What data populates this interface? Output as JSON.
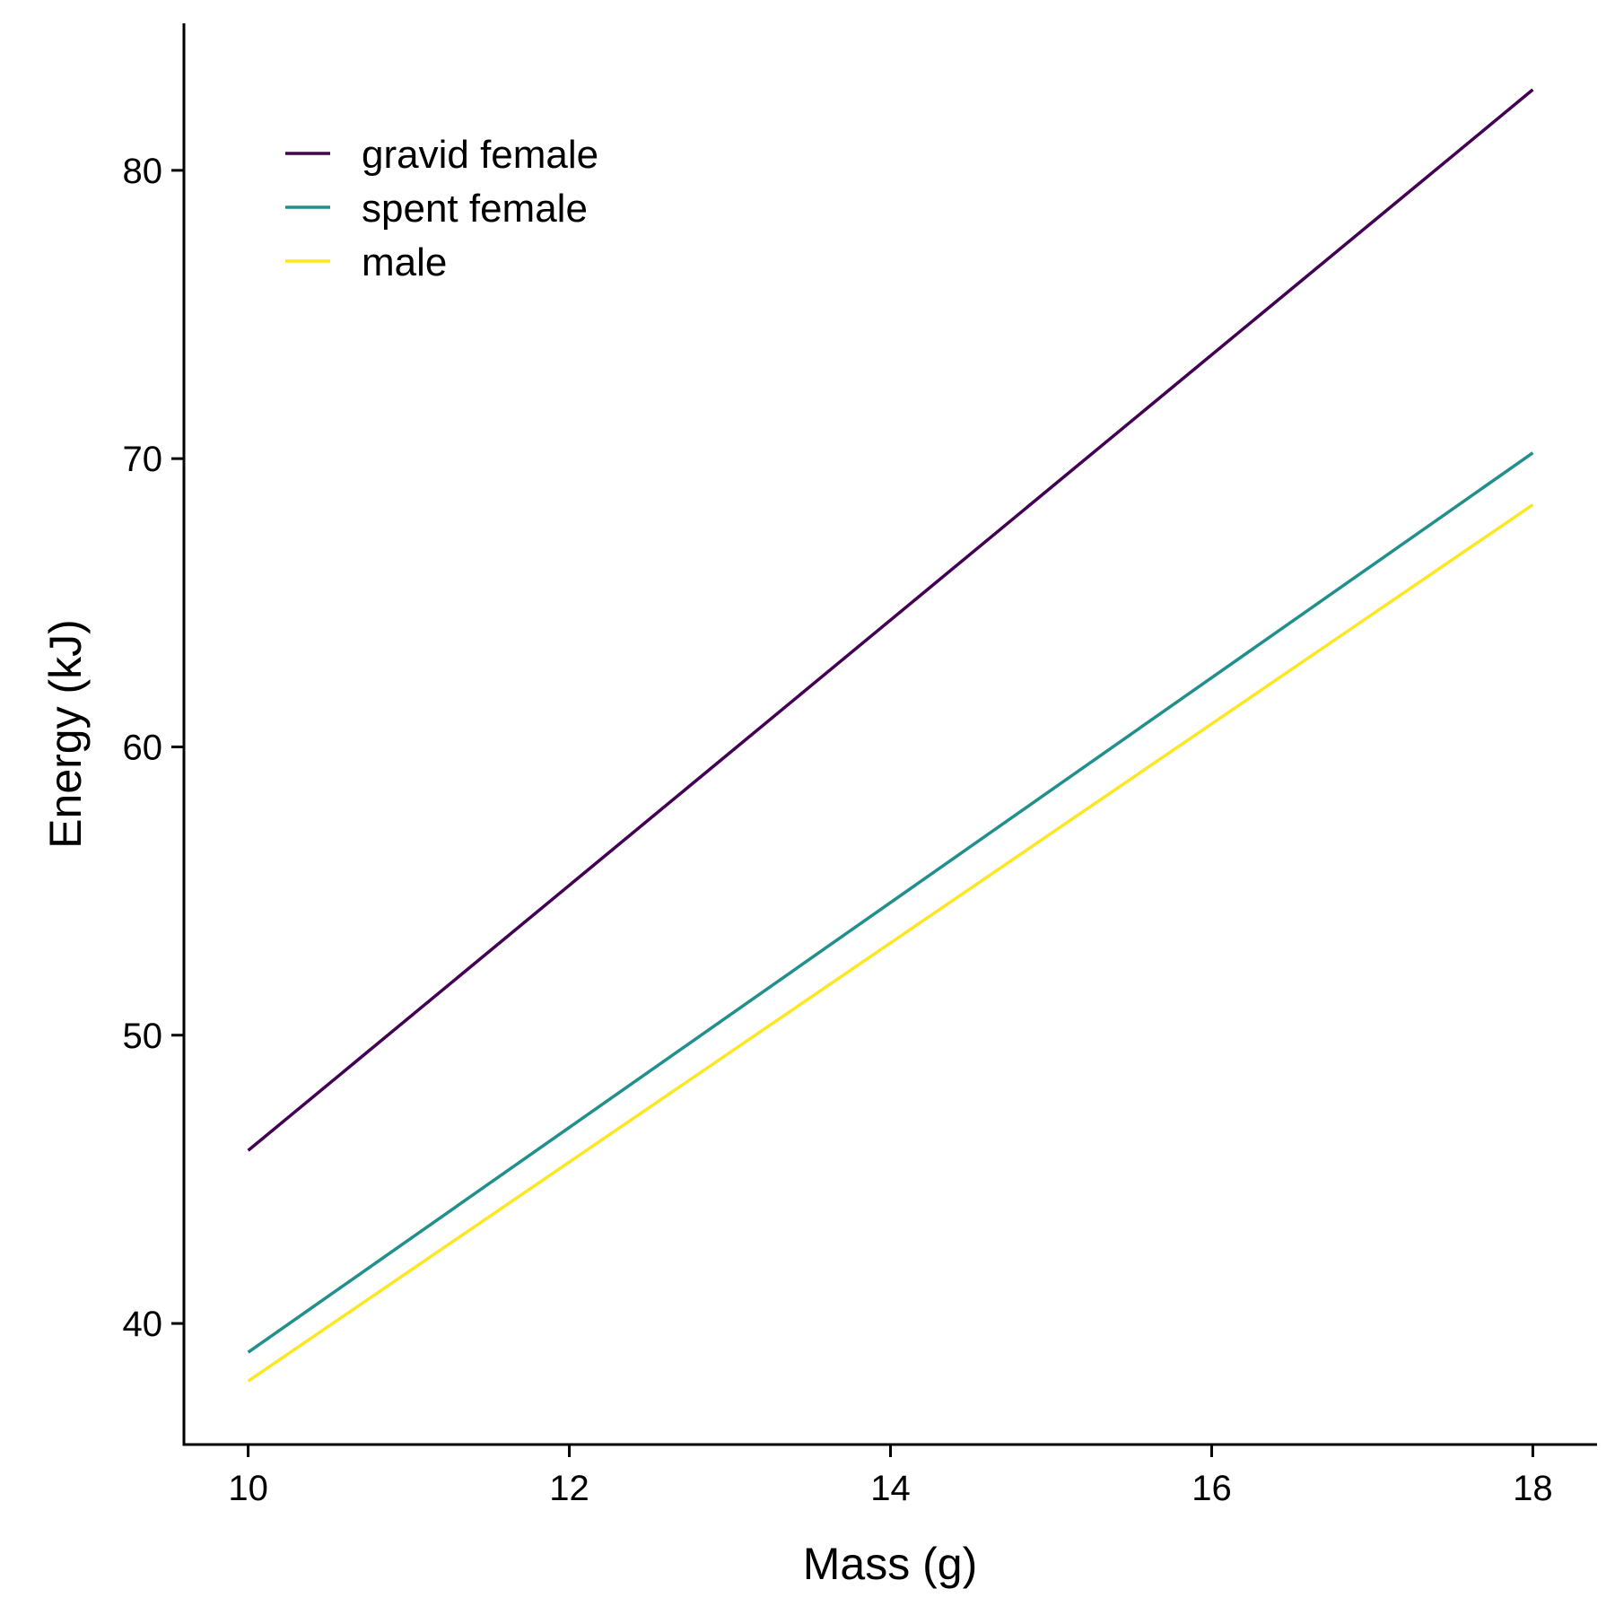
{
  "chart_data": {
    "type": "line",
    "xlabel": "Mass (g)",
    "ylabel": "Energy (kJ)",
    "xlim": [
      9.6,
      18.4
    ],
    "ylim": [
      35.8,
      85.1
    ],
    "xticks": [
      10,
      12,
      14,
      16,
      18
    ],
    "yticks": [
      40,
      50,
      60,
      70,
      80
    ],
    "grid": false,
    "legend_position": "top-left",
    "series": [
      {
        "name": "gravid female",
        "color": "#440154",
        "x": [
          10,
          18
        ],
        "y": [
          46.0,
          82.8
        ]
      },
      {
        "name": "spent female",
        "color": "#21908C",
        "x": [
          10,
          18
        ],
        "y": [
          39.0,
          70.2
        ]
      },
      {
        "name": "male",
        "color": "#FDE725",
        "x": [
          10,
          18
        ],
        "y": [
          38.0,
          68.4
        ]
      }
    ]
  }
}
